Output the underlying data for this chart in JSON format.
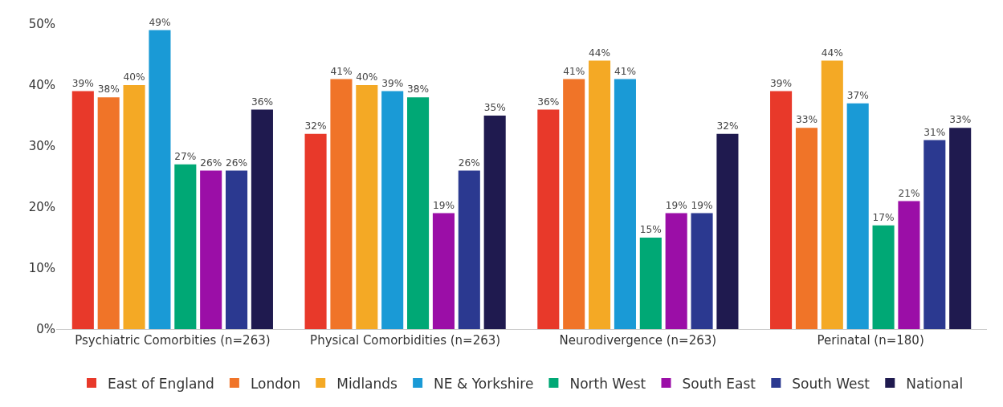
{
  "chart_data": {
    "type": "bar",
    "categories": [
      "Psychiatric Comorbities (n=263)",
      "Physical Comorbidities (n=263)",
      "Neurodivergence (n=263)",
      "Perinatal (n=180)"
    ],
    "series": [
      {
        "name": "East of England",
        "color": "#e8392a",
        "values": [
          39,
          32,
          36,
          39
        ],
        "value_labels": [
          "39%",
          "32%",
          "36%",
          "39%"
        ]
      },
      {
        "name": "London",
        "color": "#f07428",
        "values": [
          38,
          41,
          41,
          33
        ],
        "value_labels": [
          "38%",
          "41%",
          "41%",
          "33%"
        ]
      },
      {
        "name": "Midlands",
        "color": "#f4a925",
        "values": [
          40,
          40,
          44,
          44
        ],
        "value_labels": [
          "40%",
          "40%",
          "44%",
          "44%"
        ]
      },
      {
        "name": "NE & Yorkshire",
        "color": "#1a9ad6",
        "values": [
          49,
          39,
          41,
          37
        ],
        "value_labels": [
          "49%",
          "39%",
          "41%",
          "37%"
        ]
      },
      {
        "name": "North West",
        "color": "#00a875",
        "values": [
          27,
          38,
          15,
          17
        ],
        "value_labels": [
          "27%",
          "38%",
          "15%",
          "17%"
        ]
      },
      {
        "name": "South East",
        "color": "#9b0ea7",
        "values": [
          26,
          19,
          19,
          21
        ],
        "value_labels": [
          "26%",
          "19%",
          "19%",
          "21%"
        ]
      },
      {
        "name": "South West",
        "color": "#2b3990",
        "values": [
          26,
          26,
          19,
          31
        ],
        "value_labels": [
          "26%",
          "26%",
          "19%",
          "31%"
        ]
      },
      {
        "name": "National",
        "color": "#1f1a4f",
        "values": [
          36,
          35,
          32,
          33
        ],
        "value_labels": [
          "36%",
          "35%",
          "32%",
          "33%"
        ]
      }
    ],
    "ylim": [
      0,
      50
    ],
    "yticks": [
      {
        "value": 0,
        "label": "0%"
      },
      {
        "value": 10,
        "label": "10%"
      },
      {
        "value": 20,
        "label": "20%"
      },
      {
        "value": 30,
        "label": "30%"
      },
      {
        "value": 40,
        "label": "40%"
      },
      {
        "value": 50,
        "label": "50%"
      }
    ],
    "legend": "bottom"
  }
}
